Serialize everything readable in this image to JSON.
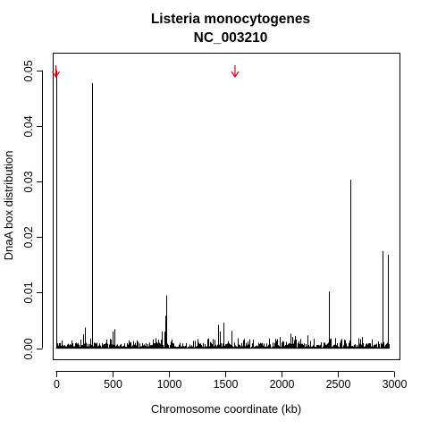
{
  "chart_data": {
    "type": "line",
    "title": "Listeria monocytogenes",
    "subtitle": "NC_003210",
    "xlabel": "Chromosome coordinate (kb)",
    "ylabel": "DnaA box distribution",
    "xlim": [
      -20,
      3050
    ],
    "ylim": [
      -0.002,
      0.053
    ],
    "xticks": [
      0,
      500,
      1000,
      1500,
      2000,
      2500,
      3000
    ],
    "yticks": [
      0,
      0.01,
      0.02,
      0.03,
      0.04,
      0.05
    ],
    "ytick_labels": [
      "0.00",
      "0.01",
      "0.02",
      "0.03",
      "0.04",
      "0.05"
    ],
    "grid": false,
    "major_peaks": [
      {
        "x": 0,
        "y": 0.05
      },
      {
        "x": 320,
        "y": 0.0477
      },
      {
        "x": 238,
        "y": 0.0025
      },
      {
        "x": 260,
        "y": 0.0037
      },
      {
        "x": 500,
        "y": 0.003
      },
      {
        "x": 520,
        "y": 0.0034
      },
      {
        "x": 940,
        "y": 0.003
      },
      {
        "x": 960,
        "y": 0.003
      },
      {
        "x": 975,
        "y": 0.0058
      },
      {
        "x": 980,
        "y": 0.0095
      },
      {
        "x": 1440,
        "y": 0.0042
      },
      {
        "x": 1455,
        "y": 0.003
      },
      {
        "x": 1490,
        "y": 0.0046
      },
      {
        "x": 1560,
        "y": 0.0031
      },
      {
        "x": 1990,
        "y": 0.002
      },
      {
        "x": 2080,
        "y": 0.0026
      },
      {
        "x": 2100,
        "y": 0.002
      },
      {
        "x": 2120,
        "y": 0.0022
      },
      {
        "x": 2230,
        "y": 0.0023
      },
      {
        "x": 2420,
        "y": 0.0102
      },
      {
        "x": 2480,
        "y": 0.0018
      },
      {
        "x": 2610,
        "y": 0.0303
      },
      {
        "x": 2720,
        "y": 0.002
      },
      {
        "x": 2900,
        "y": 0.0175
      },
      {
        "x": 2945,
        "y": 0.0168
      }
    ],
    "arrow_markers": [
      {
        "x": 0
      },
      {
        "x": 1590
      }
    ],
    "arrow_color": "#e0001b",
    "series_color": "#000000"
  }
}
